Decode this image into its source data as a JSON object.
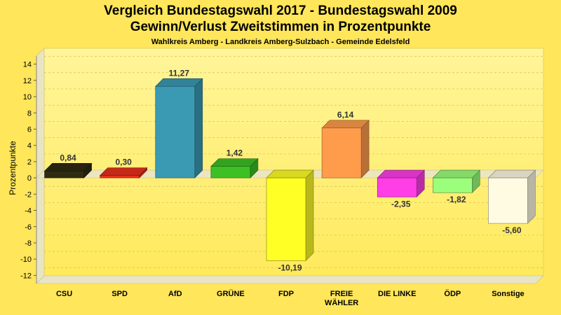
{
  "chart_data": {
    "type": "bar",
    "title": "Vergleich Bundestagswahl 2017 - Bundestagswahl 2009",
    "title_line2": "Gewinn/Verlust Zweitstimmen in Prozentpunkte",
    "subtitle": "Wahlkreis Amberg - Landkreis Amberg-Sulzbach - Gemeinde Edelsfeld",
    "ylabel": "Prozentpunkte",
    "xlabel": "",
    "ylim": [
      -13,
      15
    ],
    "yticks": [
      14,
      12,
      10,
      8,
      6,
      4,
      2,
      0,
      -2,
      -4,
      -6,
      -8,
      -10,
      -12
    ],
    "grid": true,
    "categories": [
      "CSU",
      "SPD",
      "AfD",
      "GRÜNE",
      "FDP",
      "FREIE WÄHLER",
      "DIE LINKE",
      "ÖDP",
      "Sonstige"
    ],
    "category_lines": [
      [
        "CSU"
      ],
      [
        "SPD"
      ],
      [
        "AfD"
      ],
      [
        "GRÜNE"
      ],
      [
        "FDP"
      ],
      [
        "FREIE",
        "WÄHLER"
      ],
      [
        "DIE LINKE"
      ],
      [
        "ÖDP"
      ],
      [
        "Sonstige"
      ]
    ],
    "values": [
      0.84,
      0.3,
      11.27,
      1.42,
      -10.19,
      6.14,
      -2.35,
      -1.82,
      -5.6
    ],
    "value_labels": [
      "0,84",
      "0,30",
      "11,27",
      "1,42",
      "-10,19",
      "6,14",
      "-2,35",
      "-1,82",
      "-5,60"
    ],
    "colors": [
      "#2e2b12",
      "#e8301c",
      "#3a9ab4",
      "#3cc024",
      "#ffff26",
      "#ff9c4c",
      "#ff3ee8",
      "#9cff7c",
      "#fffbe2"
    ]
  }
}
